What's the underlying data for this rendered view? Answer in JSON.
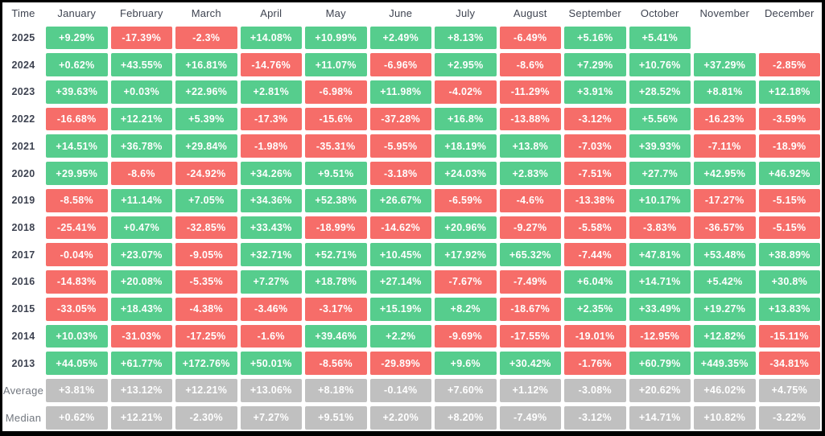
{
  "chart_data": {
    "type": "heatmap",
    "corner_label": "Time",
    "columns": [
      "January",
      "February",
      "March",
      "April",
      "May",
      "June",
      "July",
      "August",
      "September",
      "October",
      "November",
      "December"
    ],
    "rows": [
      {
        "label": "2025",
        "kind": "year",
        "values": [
          "+9.29%",
          "-17.39%",
          "-2.3%",
          "+14.08%",
          "+10.99%",
          "+2.49%",
          "+8.13%",
          "-6.49%",
          "+5.16%",
          "+5.41%",
          null,
          null
        ]
      },
      {
        "label": "2024",
        "kind": "year",
        "values": [
          "+0.62%",
          "+43.55%",
          "+16.81%",
          "-14.76%",
          "+11.07%",
          "-6.96%",
          "+2.95%",
          "-8.6%",
          "+7.29%",
          "+10.76%",
          "+37.29%",
          "-2.85%"
        ]
      },
      {
        "label": "2023",
        "kind": "year",
        "values": [
          "+39.63%",
          "+0.03%",
          "+22.96%",
          "+2.81%",
          "-6.98%",
          "+11.98%",
          "-4.02%",
          "-11.29%",
          "+3.91%",
          "+28.52%",
          "+8.81%",
          "+12.18%"
        ]
      },
      {
        "label": "2022",
        "kind": "year",
        "values": [
          "-16.68%",
          "+12.21%",
          "+5.39%",
          "-17.3%",
          "-15.6%",
          "-37.28%",
          "+16.8%",
          "-13.88%",
          "-3.12%",
          "+5.56%",
          "-16.23%",
          "-3.59%"
        ]
      },
      {
        "label": "2021",
        "kind": "year",
        "values": [
          "+14.51%",
          "+36.78%",
          "+29.84%",
          "-1.98%",
          "-35.31%",
          "-5.95%",
          "+18.19%",
          "+13.8%",
          "-7.03%",
          "+39.93%",
          "-7.11%",
          "-18.9%"
        ]
      },
      {
        "label": "2020",
        "kind": "year",
        "values": [
          "+29.95%",
          "-8.6%",
          "-24.92%",
          "+34.26%",
          "+9.51%",
          "-3.18%",
          "+24.03%",
          "+2.83%",
          "-7.51%",
          "+27.7%",
          "+42.95%",
          "+46.92%"
        ]
      },
      {
        "label": "2019",
        "kind": "year",
        "values": [
          "-8.58%",
          "+11.14%",
          "+7.05%",
          "+34.36%",
          "+52.38%",
          "+26.67%",
          "-6.59%",
          "-4.6%",
          "-13.38%",
          "+10.17%",
          "-17.27%",
          "-5.15%"
        ]
      },
      {
        "label": "2018",
        "kind": "year",
        "values": [
          "-25.41%",
          "+0.47%",
          "-32.85%",
          "+33.43%",
          "-18.99%",
          "-14.62%",
          "+20.96%",
          "-9.27%",
          "-5.58%",
          "-3.83%",
          "-36.57%",
          "-5.15%"
        ]
      },
      {
        "label": "2017",
        "kind": "year",
        "values": [
          "-0.04%",
          "+23.07%",
          "-9.05%",
          "+32.71%",
          "+52.71%",
          "+10.45%",
          "+17.92%",
          "+65.32%",
          "-7.44%",
          "+47.81%",
          "+53.48%",
          "+38.89%"
        ]
      },
      {
        "label": "2016",
        "kind": "year",
        "values": [
          "-14.83%",
          "+20.08%",
          "-5.35%",
          "+7.27%",
          "+18.78%",
          "+27.14%",
          "-7.67%",
          "-7.49%",
          "+6.04%",
          "+14.71%",
          "+5.42%",
          "+30.8%"
        ]
      },
      {
        "label": "2015",
        "kind": "year",
        "values": [
          "-33.05%",
          "+18.43%",
          "-4.38%",
          "-3.46%",
          "-3.17%",
          "+15.19%",
          "+8.2%",
          "-18.67%",
          "+2.35%",
          "+33.49%",
          "+19.27%",
          "+13.83%"
        ]
      },
      {
        "label": "2014",
        "kind": "year",
        "values": [
          "+10.03%",
          "-31.03%",
          "-17.25%",
          "-1.6%",
          "+39.46%",
          "+2.2%",
          "-9.69%",
          "-17.55%",
          "-19.01%",
          "-12.95%",
          "+12.82%",
          "-15.11%"
        ]
      },
      {
        "label": "2013",
        "kind": "year",
        "values": [
          "+44.05%",
          "+61.77%",
          "+172.76%",
          "+50.01%",
          "-8.56%",
          "-29.89%",
          "+9.6%",
          "+30.42%",
          "-1.76%",
          "+60.79%",
          "+449.35%",
          "-34.81%"
        ]
      },
      {
        "label": "Average",
        "kind": "summary",
        "values": [
          "+3.81%",
          "+13.12%",
          "+12.21%",
          "+13.06%",
          "+8.18%",
          "-0.14%",
          "+7.60%",
          "+1.12%",
          "-3.08%",
          "+20.62%",
          "+46.02%",
          "+4.75%"
        ]
      },
      {
        "label": "Median",
        "kind": "summary",
        "values": [
          "+0.62%",
          "+12.21%",
          "-2.30%",
          "+7.27%",
          "+9.51%",
          "+2.20%",
          "+8.20%",
          "-7.49%",
          "-3.12%",
          "+14.71%",
          "+10.82%",
          "-3.22%"
        ]
      }
    ],
    "colors": {
      "positive": "#56cd8d",
      "negative": "#f66d69",
      "neutral": "#c0c0c0",
      "cell_text": "#ffffff",
      "header_text": "#3f4451",
      "year_label_text": "#3d4250",
      "summary_label_text": "#72777f",
      "background": "#ffffff",
      "frame": "#000000"
    },
    "legend": "off",
    "grid": "off"
  }
}
